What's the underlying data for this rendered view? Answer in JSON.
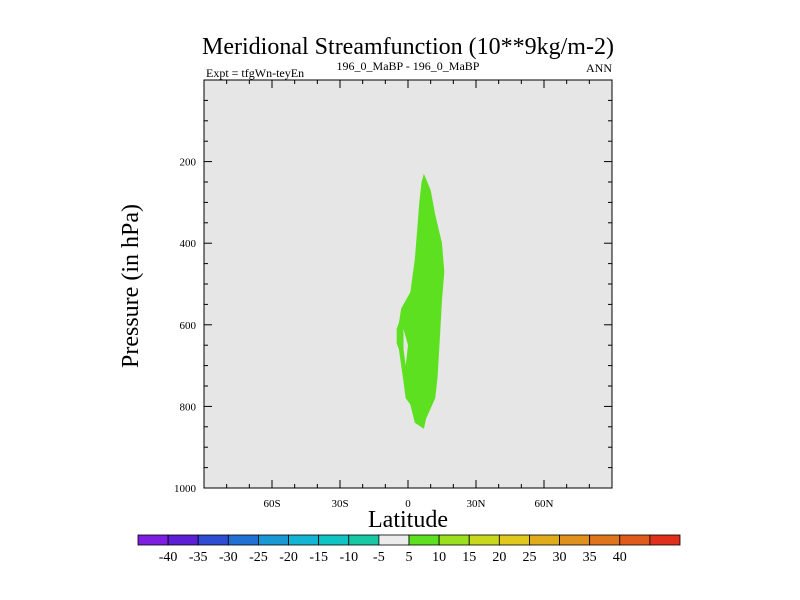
{
  "chart_data": {
    "type": "contour",
    "title": "Meridional Streamfunction (10**9kg/m-2)",
    "subtitle_left": "Expt = tfgWn-teyEn",
    "subtitle_center": "196_0_MaBP - 196_0_MaBP",
    "subtitle_right": "ANN",
    "xlabel": "Latitude",
    "ylabel": "Pressure (in hPa)",
    "xlim": [
      -90,
      90
    ],
    "ylim": [
      1000,
      0
    ],
    "x_ticks": [
      {
        "value": -60,
        "label": "60S"
      },
      {
        "value": -30,
        "label": "30S"
      },
      {
        "value": 0,
        "label": "0"
      },
      {
        "value": 30,
        "label": "30N"
      },
      {
        "value": 60,
        "label": "60N"
      }
    ],
    "y_ticks": [
      {
        "value": 200,
        "label": "200"
      },
      {
        "value": 400,
        "label": "400"
      },
      {
        "value": 600,
        "label": "600"
      },
      {
        "value": 800,
        "label": "800"
      },
      {
        "value": 1000,
        "label": "1000"
      }
    ],
    "background_color": "#e6e6e6",
    "filled_region": {
      "level_range": "5 to 10",
      "color": "#5ce01f",
      "outline": [
        [
          7,
          230
        ],
        [
          10,
          270
        ],
        [
          12,
          330
        ],
        [
          15,
          400
        ],
        [
          16,
          470
        ],
        [
          15,
          540
        ],
        [
          14,
          640
        ],
        [
          13,
          730
        ],
        [
          12,
          780
        ],
        [
          8,
          830
        ],
        [
          7,
          855
        ],
        [
          3,
          840
        ],
        [
          1,
          795
        ],
        [
          -1,
          780
        ],
        [
          -2,
          740
        ],
        [
          -3,
          700
        ],
        [
          -4,
          660
        ],
        [
          -5,
          645
        ],
        [
          -5,
          610
        ],
        [
          -4,
          595
        ],
        [
          -3,
          560
        ],
        [
          1,
          520
        ],
        [
          3,
          440
        ],
        [
          4,
          370
        ],
        [
          5,
          300
        ],
        [
          6,
          250
        ]
      ],
      "hole": [
        [
          -2,
          610
        ],
        [
          0,
          650
        ],
        [
          -1,
          700
        ],
        [
          -2,
          660
        ]
      ]
    },
    "colorbar": {
      "colors": [
        "#7e1ee0",
        "#5c1fd6",
        "#2f4cd4",
        "#2170d4",
        "#1898d4",
        "#14b4d4",
        "#10c4c4",
        "#18c8a4",
        "#ececec",
        "#5ce01f",
        "#9ae01e",
        "#c8d81c",
        "#e0c81c",
        "#e0ac1c",
        "#e0901c",
        "#e0741c",
        "#e05a1c",
        "#e0301c"
      ],
      "labels": [
        "-40",
        "-35",
        "-30",
        "-25",
        "-20",
        "-15",
        "-10",
        "-5",
        "5",
        "10",
        "15",
        "20",
        "25",
        "30",
        "35",
        "40"
      ]
    }
  }
}
